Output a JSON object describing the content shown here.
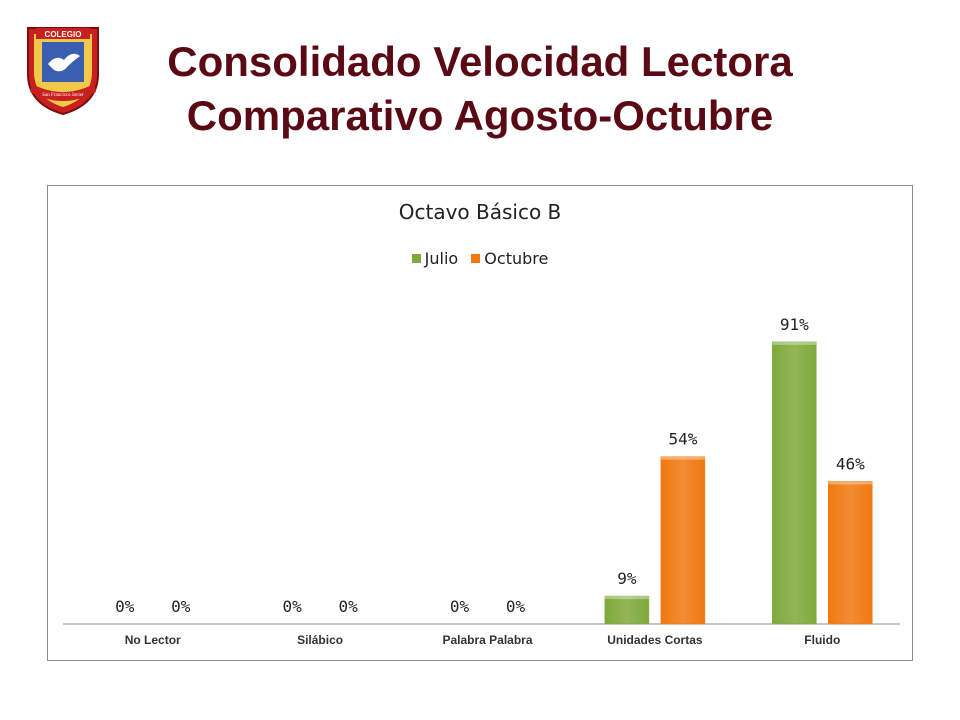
{
  "page": {
    "title_line1": "Consolidado Velocidad Lectora",
    "title_line2": "Comparativo Agosto-Octubre"
  },
  "logo": {
    "top_text": "COLEGIO",
    "ribbon_text": "San Francisco Javier",
    "icon": "dove-emblem-icon"
  },
  "colors": {
    "title": "#5a0a14",
    "julio": "#7ea93a",
    "octubre": "#f07810"
  },
  "chart_data": {
    "type": "bar",
    "title": "Octavo Básico B",
    "categories": [
      "No Lector",
      "Silábico",
      "Palabra Palabra",
      "Unidades Cortas",
      "Fluido"
    ],
    "series": [
      {
        "name": "Julio",
        "values": [
          0,
          0,
          0,
          9,
          91
        ],
        "labels": [
          "0%",
          "0%",
          "0%",
          "9%",
          "91%"
        ]
      },
      {
        "name": "Octubre",
        "values": [
          0,
          0,
          0,
          54,
          46
        ],
        "labels": [
          "0%",
          "0%",
          "0%",
          "54%",
          "46%"
        ]
      }
    ],
    "ylim": [
      0,
      100
    ],
    "grid": false,
    "legend": "top"
  }
}
